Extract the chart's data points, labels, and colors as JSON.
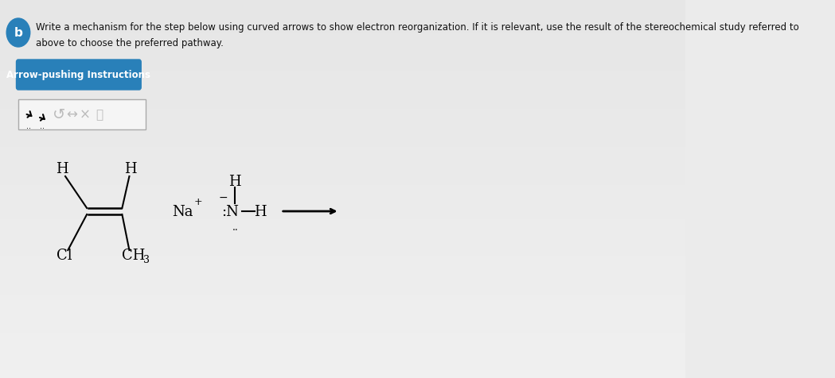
{
  "bg_color": "#e8e8e8",
  "bg_color_top": "#f0f0f0",
  "text_color": "#222222",
  "title_text_line1": "Write a mechanism for the step below using curved arrows to show electron reorganization. If it is relevant, use the result of the stereochemical study referred to",
  "title_text_line2": "above to choose the preferred pathway.",
  "button_text": "Arrow-pushing Instructions",
  "button_color": "#2980b9",
  "button_text_color": "#ffffff",
  "circle_b_color": "#2980b9",
  "circle_b_text": "b"
}
